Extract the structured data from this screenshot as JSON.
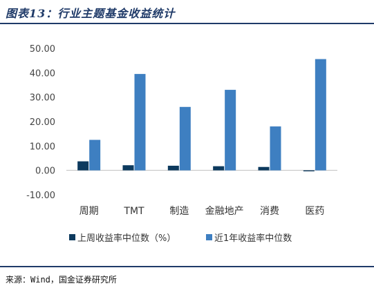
{
  "figure": {
    "title": "图表13：行业主题基金收益统计",
    "source": "来源：Wind，国金证券研究所"
  },
  "colors": {
    "series1": "#0d3a5e",
    "series2": "#3e7fc1",
    "accent": "#1f3a68"
  },
  "chart_data": {
    "type": "bar",
    "categories": [
      "周期",
      "TMT",
      "制造",
      "金融地产",
      "消费",
      "医药"
    ],
    "series": [
      {
        "name": "上周收益率中位数（%）",
        "values": [
          3.7,
          2.1,
          1.9,
          1.7,
          1.4,
          -0.4
        ]
      },
      {
        "name": "近1年收益率中位数",
        "values": [
          12.5,
          39.5,
          26.0,
          33.0,
          18.0,
          45.6
        ]
      }
    ],
    "ylim": [
      -10,
      50
    ],
    "yticks": [
      "-10.00",
      "0.00",
      "10.00",
      "20.00",
      "30.00",
      "40.00",
      "50.00"
    ],
    "title": "",
    "xlabel": "",
    "ylabel": "",
    "grid": false,
    "legend_position": "bottom"
  }
}
